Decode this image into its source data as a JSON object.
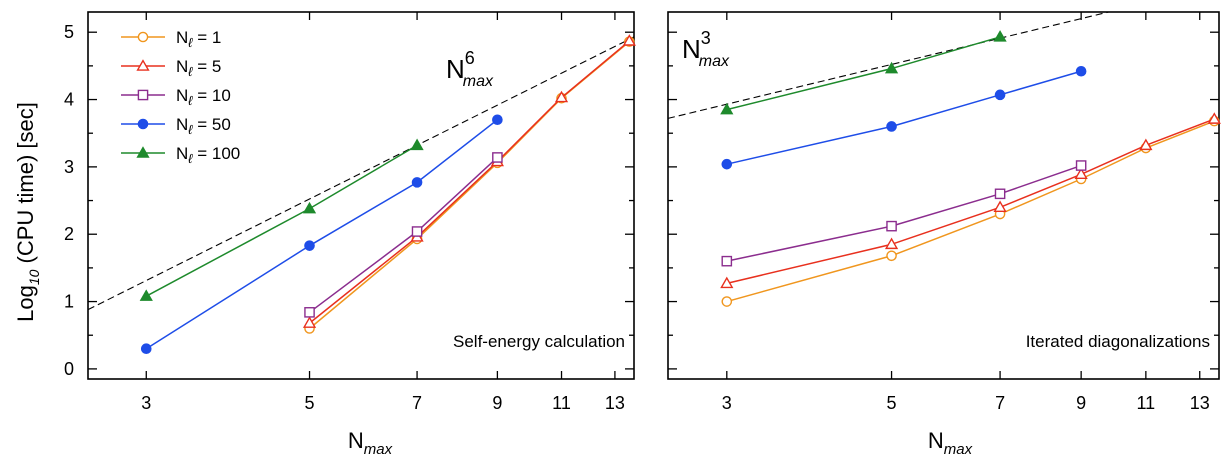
{
  "ylabel": {
    "main": "Log",
    "sub": "10",
    "rest": " (CPU time) [sec]"
  },
  "legend": [
    {
      "name_main": "N",
      "name_sub": "ℓ",
      "eq": " = 1"
    },
    {
      "name_main": "N",
      "name_sub": "ℓ",
      "eq": " = 5"
    },
    {
      "name_main": "N",
      "name_sub": "ℓ",
      "eq": " = 10"
    },
    {
      "name_main": "N",
      "name_sub": "ℓ",
      "eq": " = 50"
    },
    {
      "name_main": "N",
      "name_sub": "ℓ",
      "eq": " = 100"
    }
  ],
  "chart_data": [
    {
      "type": "line",
      "xscale": "log",
      "xlabel": {
        "main": "N",
        "sub": "max"
      },
      "xticks": [
        "3",
        "5",
        "7",
        "9",
        "11",
        "13"
      ],
      "yticks": [
        "0",
        "1",
        "2",
        "3",
        "4",
        "5"
      ],
      "xlim": [
        2.5,
        13.8
      ],
      "ylim": [
        -0.15,
        5.3
      ],
      "annotation": "Self-energy calculation",
      "scaling_label": {
        "main": "N",
        "sup": "6",
        "sub": "max"
      },
      "reference_line": {
        "style": "dashed",
        "x": [
          2.5,
          13.8
        ],
        "y": [
          0.88,
          4.93
        ]
      },
      "series": [
        {
          "name": "N_ℓ = 1",
          "color": "#f0961e",
          "marker": "circle-open",
          "x": [
            5,
            7,
            9,
            11,
            13.6
          ],
          "y": [
            0.6,
            1.93,
            3.06,
            4.02,
            4.86
          ]
        },
        {
          "name": "N_ℓ = 5",
          "color": "#e8301e",
          "marker": "triangle-open",
          "x": [
            5,
            7,
            9,
            11,
            13.6
          ],
          "y": [
            0.68,
            1.96,
            3.08,
            4.03,
            4.87
          ]
        },
        {
          "name": "N_ℓ = 10",
          "color": "#8b2d8e",
          "marker": "square-open",
          "x": [
            5,
            7,
            9
          ],
          "y": [
            0.84,
            2.04,
            3.14
          ]
        },
        {
          "name": "N_ℓ = 50",
          "color": "#1e4de8",
          "marker": "circle-filled",
          "x": [
            3,
            5,
            7,
            9
          ],
          "y": [
            0.3,
            1.83,
            2.77,
            3.7
          ]
        },
        {
          "name": "N_ℓ = 100",
          "color": "#1e8a2c",
          "marker": "triangle-filled",
          "x": [
            3,
            5,
            7
          ],
          "y": [
            1.08,
            2.38,
            3.32
          ]
        }
      ]
    },
    {
      "type": "line",
      "xscale": "log",
      "xlabel": {
        "main": "N",
        "sub": "max"
      },
      "xticks": [
        "3",
        "5",
        "7",
        "9",
        "11",
        "13"
      ],
      "yticks": [],
      "xlim": [
        2.5,
        13.8
      ],
      "ylim": [
        -0.15,
        5.3
      ],
      "annotation": "Iterated diagonalizations",
      "scaling_label": {
        "main": "N",
        "sup": "3",
        "sub": "max"
      },
      "reference_line": {
        "style": "dashed",
        "x": [
          2.5,
          9.8
        ],
        "y": [
          3.72,
          5.3
        ]
      },
      "series": [
        {
          "name": "N_ℓ = 1",
          "color": "#f0961e",
          "marker": "circle-open",
          "x": [
            3,
            5,
            7,
            9,
            11,
            13.6
          ],
          "y": [
            1.0,
            1.68,
            2.3,
            2.82,
            3.28,
            3.68
          ]
        },
        {
          "name": "N_ℓ = 5",
          "color": "#e8301e",
          "marker": "triangle-open",
          "x": [
            3,
            5,
            7,
            9,
            11,
            13.6
          ],
          "y": [
            1.27,
            1.85,
            2.4,
            2.89,
            3.32,
            3.71
          ]
        },
        {
          "name": "N_ℓ = 10",
          "color": "#8b2d8e",
          "marker": "square-open",
          "x": [
            3,
            5,
            7,
            9
          ],
          "y": [
            1.6,
            2.12,
            2.6,
            3.02
          ]
        },
        {
          "name": "N_ℓ = 50",
          "color": "#1e4de8",
          "marker": "circle-filled",
          "x": [
            3,
            5,
            7,
            9
          ],
          "y": [
            3.04,
            3.6,
            4.07,
            4.42
          ]
        },
        {
          "name": "N_ℓ = 100",
          "color": "#1e8a2c",
          "marker": "triangle-filled",
          "x": [
            3,
            5,
            7
          ],
          "y": [
            3.85,
            4.46,
            4.93
          ]
        }
      ]
    }
  ]
}
